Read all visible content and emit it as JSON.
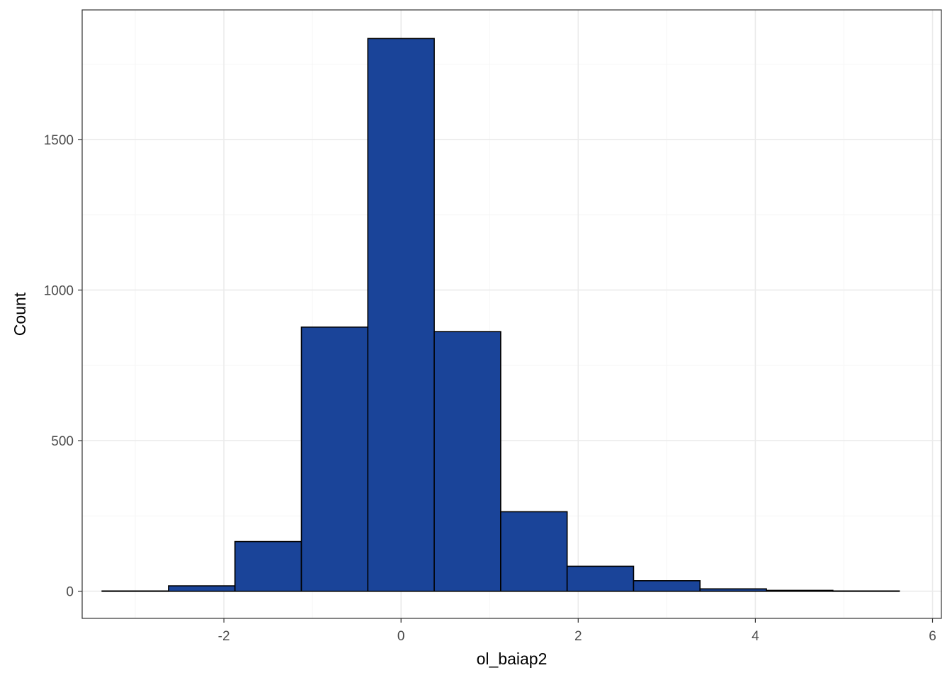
{
  "chart_data": {
    "type": "bar",
    "subtype": "histogram",
    "title": "",
    "xlabel": "ol_baiap2",
    "ylabel": "Count",
    "xlim": [
      -3.6,
      6.1
    ],
    "ylim": [
      -90,
      1930
    ],
    "x_ticks": [
      -2,
      0,
      2,
      4,
      6
    ],
    "x_tick_labels": [
      "-2",
      "0",
      "2",
      "4",
      "6"
    ],
    "y_ticks": [
      0,
      500,
      1000,
      1500
    ],
    "y_tick_labels": [
      "0",
      "500",
      "1000",
      "1500"
    ],
    "x_minor_ticks": [
      -3,
      -1,
      1,
      3,
      5
    ],
    "y_minor_ticks": [
      250,
      750,
      1250,
      1750
    ],
    "grid": true,
    "legend": "none",
    "bins": [
      {
        "x0": -3.375,
        "x1": -2.625,
        "count": 1
      },
      {
        "x0": -2.625,
        "x1": -1.875,
        "count": 18
      },
      {
        "x0": -1.875,
        "x1": -1.125,
        "count": 165
      },
      {
        "x0": -1.125,
        "x1": -0.375,
        "count": 877
      },
      {
        "x0": -0.375,
        "x1": 0.375,
        "count": 1835
      },
      {
        "x0": 0.375,
        "x1": 1.125,
        "count": 862
      },
      {
        "x0": 1.125,
        "x1": 1.875,
        "count": 264
      },
      {
        "x0": 1.875,
        "x1": 2.625,
        "count": 83
      },
      {
        "x0": 2.625,
        "x1": 3.375,
        "count": 35
      },
      {
        "x0": 3.375,
        "x1": 4.125,
        "count": 8
      },
      {
        "x0": 4.125,
        "x1": 4.875,
        "count": 3
      },
      {
        "x0": 4.875,
        "x1": 5.625,
        "count": 1
      }
    ],
    "colors": {
      "bar_fill": "#1a4499",
      "bar_stroke": "#000000",
      "grid_major": "#ebebeb",
      "grid_minor": "#f5f5f5",
      "panel_border": "#333333",
      "tick_text": "#4d4d4d"
    }
  }
}
